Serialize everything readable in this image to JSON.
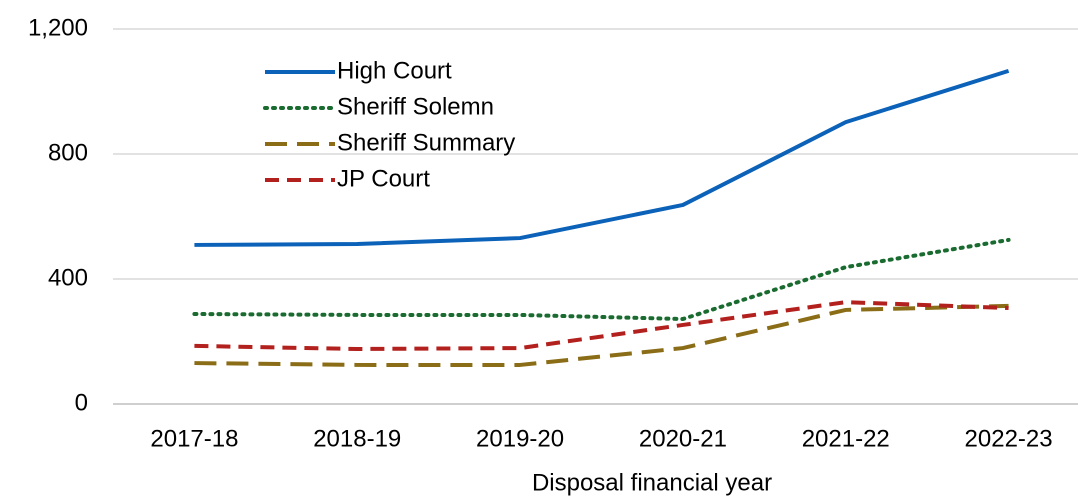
{
  "chart_data": {
    "type": "line",
    "x_label": "Disposal financial year",
    "categories": [
      "2017-18",
      "2018-19",
      "2019-20",
      "2020-21",
      "2021-22",
      "2022-23"
    ],
    "series": [
      {
        "name": "High Court",
        "color": "#0b62b8",
        "dash": "solid",
        "values": [
          509,
          512,
          531,
          637,
          902,
          1066
        ]
      },
      {
        "name": "Sheriff Solemn",
        "color": "#1a6b30",
        "dash": "dotted",
        "values": [
          288,
          285,
          285,
          272,
          438,
          525
        ]
      },
      {
        "name": "Sheriff Summary",
        "color": "#8a6d16",
        "dash": "long-dash",
        "values": [
          131,
          125,
          125,
          179,
          301,
          314
        ]
      },
      {
        "name": "JP Court",
        "color": "#b3211e",
        "dash": "dash",
        "values": [
          186,
          176,
          179,
          253,
          326,
          307
        ]
      }
    ],
    "ylim": [
      0,
      1200
    ],
    "yticks": [
      0,
      400,
      800,
      {
        "value": 1200,
        "label": "1,200"
      }
    ],
    "grid": true,
    "legend": "upper left"
  }
}
